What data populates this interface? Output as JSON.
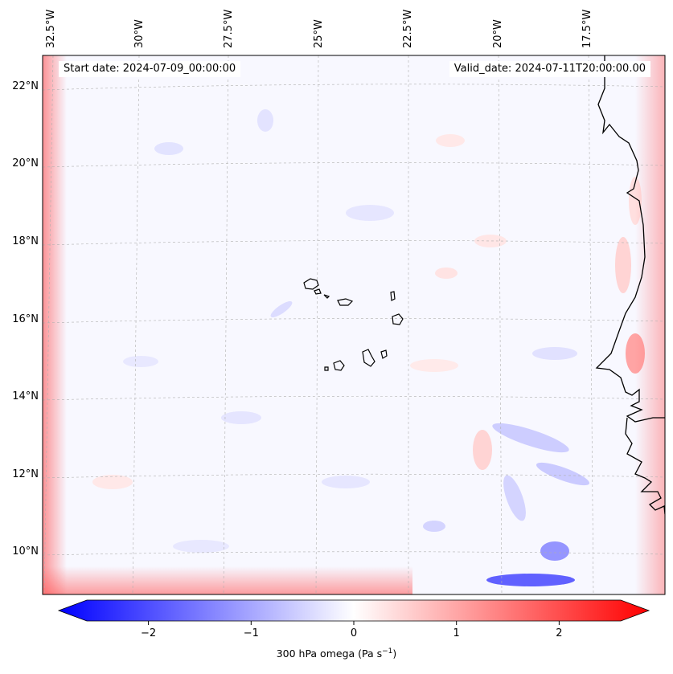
{
  "header": {
    "start_date": "Start date: 2024-07-09_00:00:00",
    "valid_date": "Valid_date: 2024-07-11T20:00:00.00"
  },
  "map": {
    "lon_labels": [
      "32.5°W",
      "30°W",
      "27.5°W",
      "25°W",
      "22.5°W",
      "20°W",
      "17.5°W"
    ],
    "lat_labels": [
      "22°N",
      "20°N",
      "18°N",
      "16°N",
      "14°N",
      "12°N",
      "10°N"
    ]
  },
  "colorbar": {
    "ticks": [
      "−2",
      "−1",
      "0",
      "1",
      "2"
    ],
    "tick_values": [
      -2,
      -1,
      0,
      1,
      2
    ],
    "min": -2.6,
    "max": 2.6,
    "label_main": "300 hPa omega (Pa s",
    "label_sup": "−1",
    "label_end": ")",
    "colors": {
      "negative": "#0000ff",
      "zero": "#ffffff",
      "positive": "#ff0000"
    }
  }
}
